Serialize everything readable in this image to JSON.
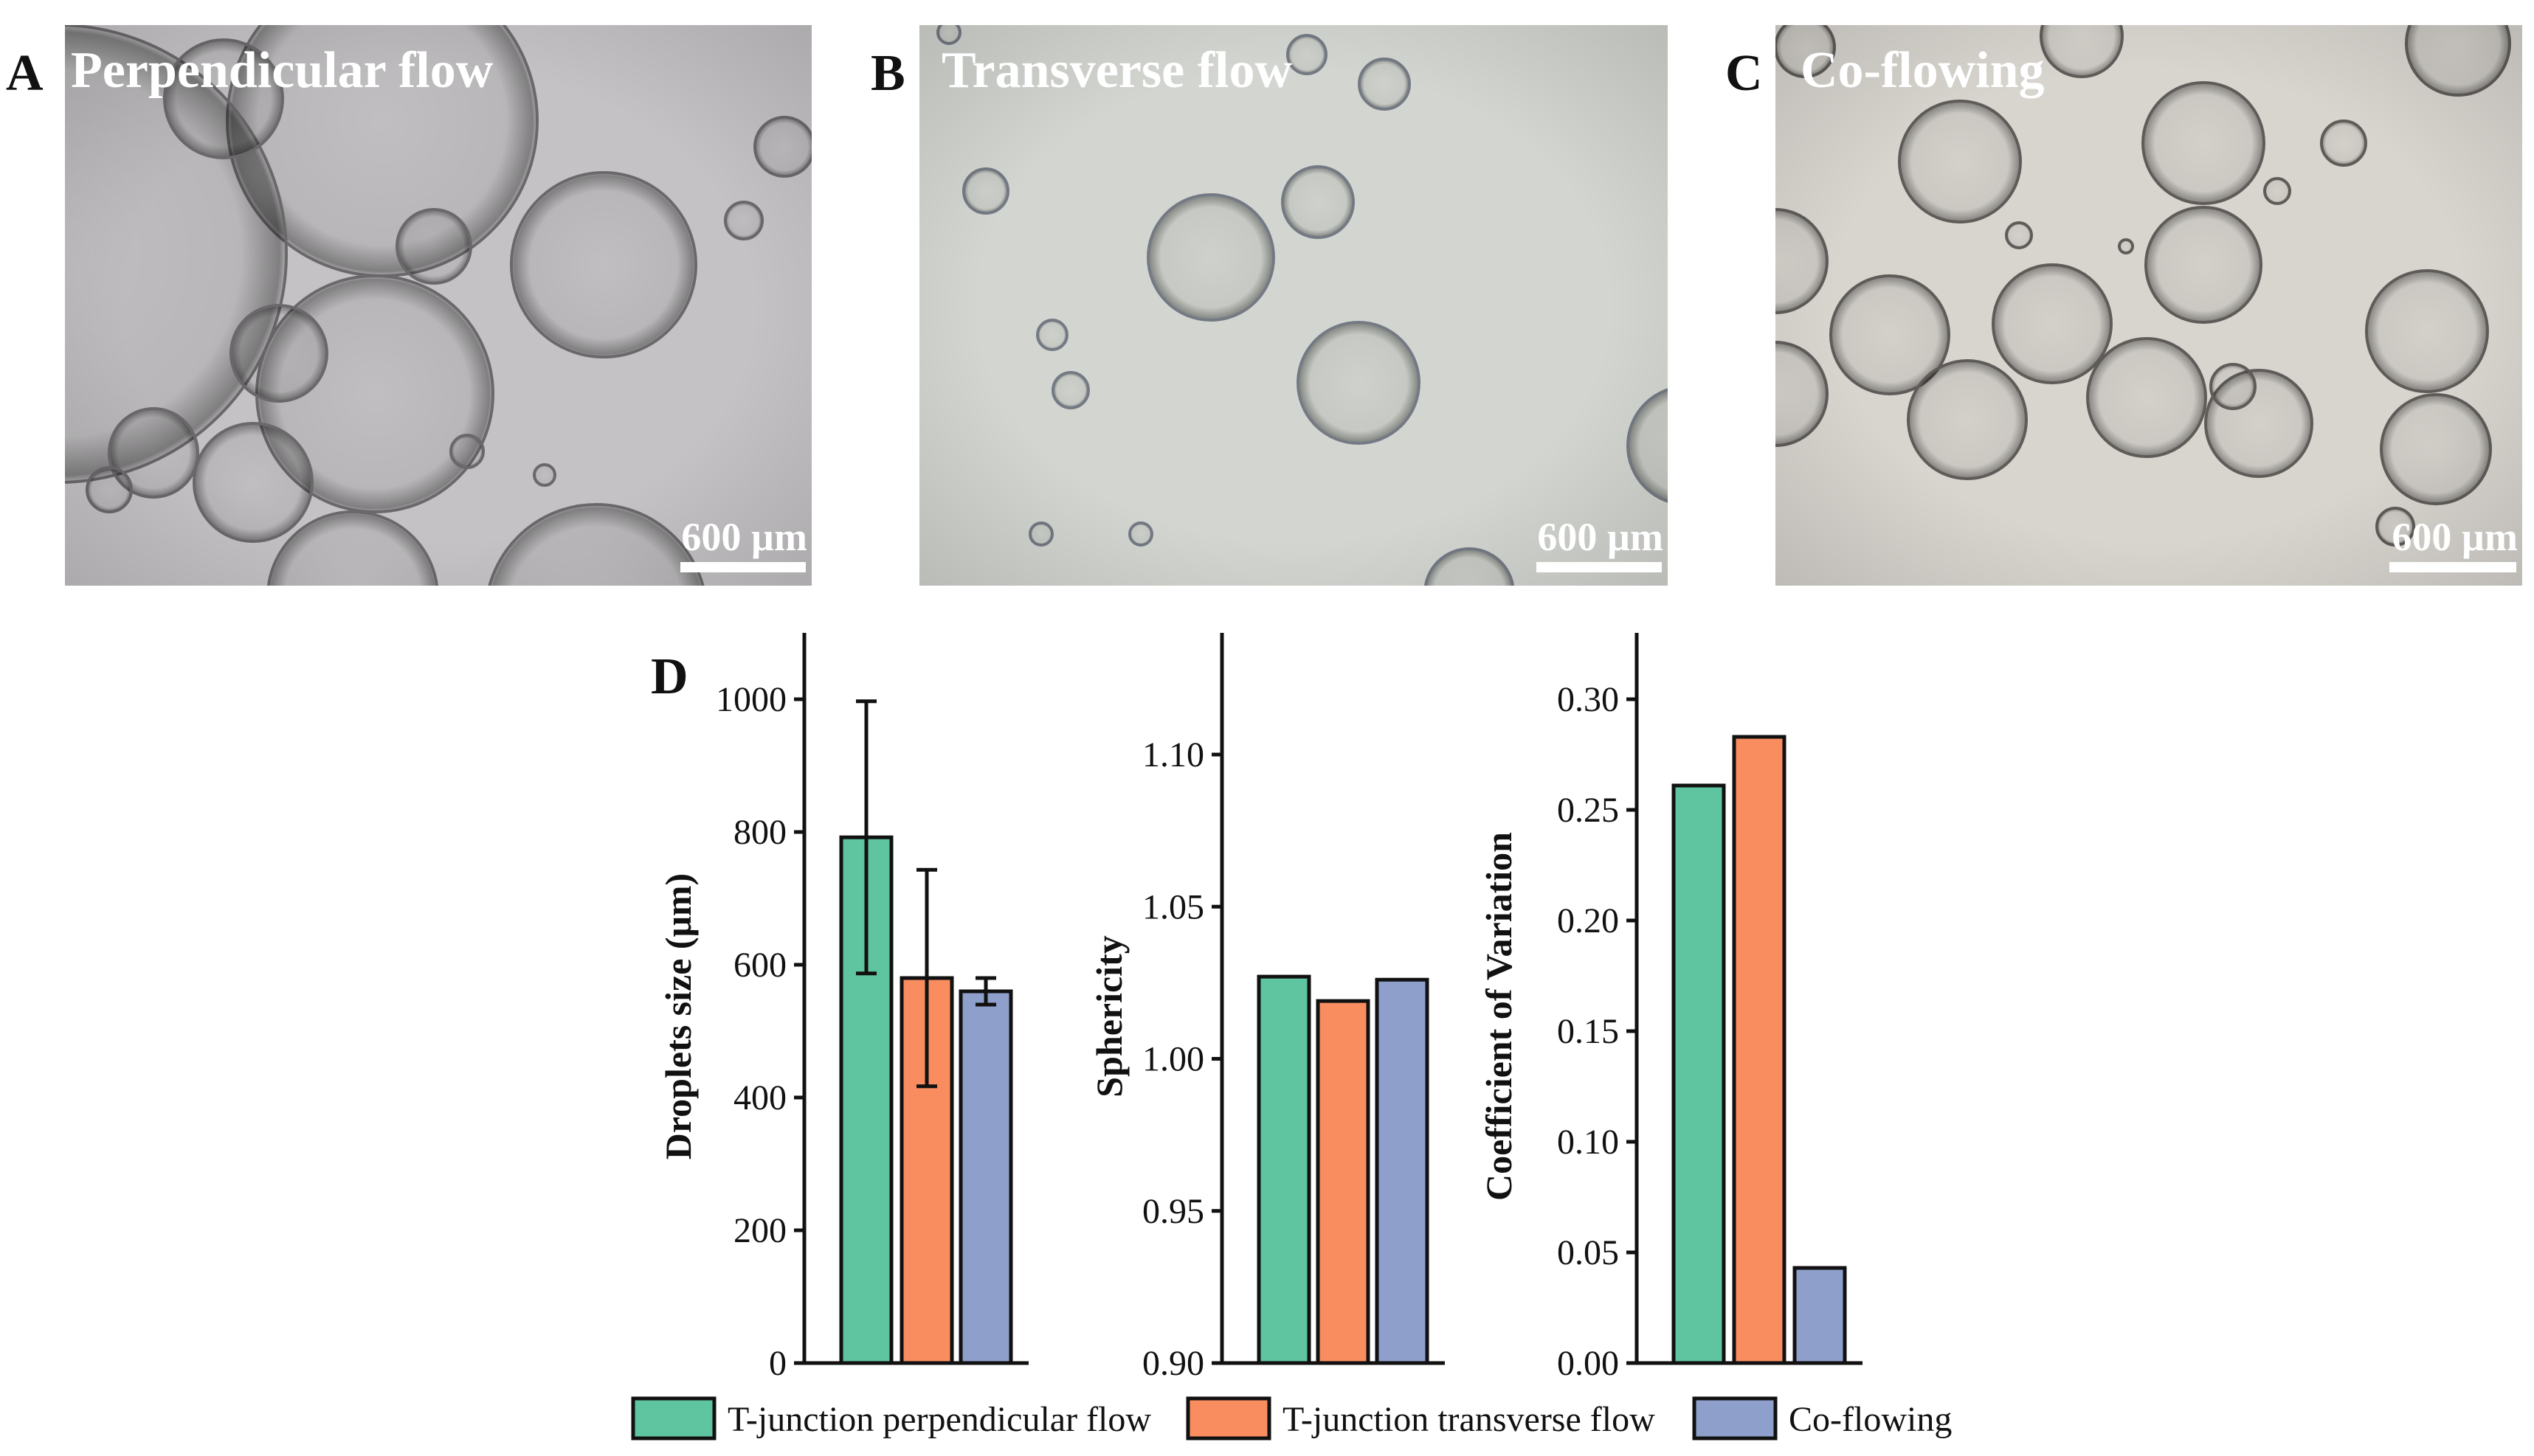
{
  "panels": [
    {
      "letter": "A",
      "title": "Perpendicular flow",
      "scale_label": "600 µm",
      "tint": "#c4c2c4"
    },
    {
      "letter": "B",
      "title": "Transverse flow",
      "scale_label": "600 µm",
      "tint": "#d3d6d0"
    },
    {
      "letter": "C",
      "title": "Co-flowing",
      "scale_label": "600 µm",
      "tint": "#d8d5cf"
    }
  ],
  "panel_d_letter": "D",
  "colors": {
    "T-junction perpendicular flow": "#5fc4a0",
    "T-junction transverse flow": "#f98d60",
    "Co-flowing": "#8e9fcb"
  },
  "chart_data": [
    {
      "type": "bar",
      "categories": [
        "T-junction perpendicular flow",
        "T-junction transverse flow",
        "Co-flowing"
      ],
      "values": [
        792,
        580,
        560
      ],
      "errors": [
        205,
        163,
        20
      ],
      "ylabel": "Droplets size (μm)",
      "ylim": [
        0,
        1100
      ],
      "yticks": [
        0,
        200,
        400,
        600,
        800,
        1000
      ]
    },
    {
      "type": "bar",
      "categories": [
        "T-junction perpendicular flow",
        "T-junction transverse flow",
        "Co-flowing"
      ],
      "values": [
        1.027,
        1.019,
        1.026
      ],
      "ylabel": "Sphericity",
      "ylim": [
        0.9,
        1.14
      ],
      "yticks": [
        "0.90",
        "0.95",
        "1.00",
        "1.05",
        "1.10"
      ]
    },
    {
      "type": "bar",
      "categories": [
        "T-junction perpendicular flow",
        "T-junction transverse flow",
        "Co-flowing"
      ],
      "values": [
        0.261,
        0.283,
        0.043
      ],
      "ylabel": "Coefficient of Variation",
      "ylim": [
        0,
        0.33
      ],
      "yticks": [
        "0.00",
        "0.05",
        "0.10",
        "0.15",
        "0.20",
        "0.25",
        "0.30"
      ]
    }
  ],
  "legend": {
    "placement": "bottom",
    "entries": [
      "T-junction perpendicular flow",
      "T-junction transverse flow",
      "Co-flowing"
    ]
  }
}
